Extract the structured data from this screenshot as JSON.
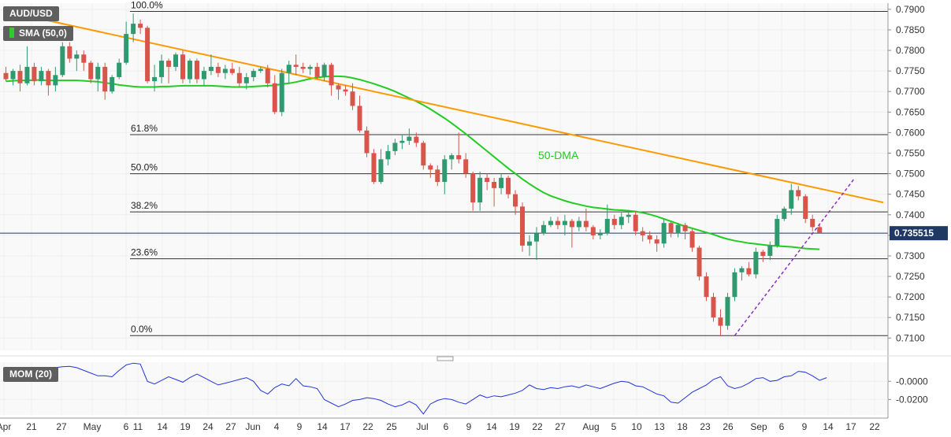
{
  "legend": {
    "symbol": "AUD/USD",
    "sma_label": "SMA (50,0)",
    "sma_color": "#2ecc2e",
    "mom_label": "MOM (20)"
  },
  "colors": {
    "bull": "#2f9a70",
    "bear": "#d9544a",
    "trendline": "#ff9900",
    "support_line": "#8c30c0",
    "sma": "#22cc22",
    "momentum": "#2233dd",
    "price_tag_bg": "#1f3864"
  },
  "chart_data": {
    "type": "candlestick",
    "symbol": "AUD/USD",
    "current_price": "0.735515",
    "y_ticks": [
      "0.7900",
      "0.7850",
      "0.7800",
      "0.7750",
      "0.7700",
      "0.7650",
      "0.7600",
      "0.7550",
      "0.7500",
      "0.7450",
      "0.7400",
      "0.7350",
      "0.7300",
      "0.7250",
      "0.7200",
      "0.7150",
      "0.7100"
    ],
    "ylim": [
      0.707,
      0.7915
    ],
    "x_tick_labels": [
      "Apr",
      "21",
      "27",
      "May",
      "6",
      "11",
      "14",
      "19",
      "24",
      "27",
      "Jun",
      "4",
      "9",
      "14",
      "17",
      "22",
      "25",
      "Jul",
      "6",
      "9",
      "14",
      "19",
      "22",
      "27",
      "Aug",
      "5",
      "10",
      "13",
      "18",
      "23",
      "26",
      "Sep",
      "6",
      "9",
      "14",
      "17",
      "22"
    ],
    "fibonacci": [
      {
        "label": "100.0%",
        "price": 0.7895
      },
      {
        "label": "61.8%",
        "price": 0.7595
      },
      {
        "label": "50.0%",
        "price": 0.75
      },
      {
        "label": "38.2%",
        "price": 0.7407
      },
      {
        "label": "23.6%",
        "price": 0.7293
      },
      {
        "label": "0.0%",
        "price": 0.7106
      }
    ],
    "annotation": "50-DMA",
    "candles": [
      [
        0.7745,
        0.776,
        0.7725,
        0.773
      ],
      [
        0.773,
        0.7755,
        0.7715,
        0.775
      ],
      [
        0.775,
        0.7765,
        0.77,
        0.772
      ],
      [
        0.772,
        0.781,
        0.7715,
        0.776
      ],
      [
        0.776,
        0.777,
        0.7715,
        0.7725
      ],
      [
        0.7725,
        0.776,
        0.7715,
        0.775
      ],
      [
        0.775,
        0.7755,
        0.769,
        0.7715
      ],
      [
        0.7715,
        0.776,
        0.77,
        0.774
      ],
      [
        0.774,
        0.782,
        0.7735,
        0.781
      ],
      [
        0.781,
        0.782,
        0.777,
        0.778
      ],
      [
        0.778,
        0.78,
        0.775,
        0.779
      ],
      [
        0.779,
        0.78,
        0.775,
        0.777
      ],
      [
        0.777,
        0.7775,
        0.772,
        0.773
      ],
      [
        0.773,
        0.777,
        0.77,
        0.776
      ],
      [
        0.776,
        0.777,
        0.768,
        0.77
      ],
      [
        0.77,
        0.774,
        0.7695,
        0.7735
      ],
      [
        0.7735,
        0.778,
        0.773,
        0.777
      ],
      [
        0.777,
        0.787,
        0.7765,
        0.784
      ],
      [
        0.784,
        0.789,
        0.782,
        0.7865
      ],
      [
        0.7865,
        0.7875,
        0.784,
        0.7855
      ],
      [
        0.7855,
        0.786,
        0.772,
        0.7725
      ],
      [
        0.7725,
        0.7765,
        0.77,
        0.7735
      ],
      [
        0.7735,
        0.779,
        0.772,
        0.7775
      ],
      [
        0.7775,
        0.778,
        0.772,
        0.776
      ],
      [
        0.776,
        0.7795,
        0.775,
        0.779
      ],
      [
        0.779,
        0.78,
        0.772,
        0.773
      ],
      [
        0.773,
        0.778,
        0.772,
        0.7775
      ],
      [
        0.7775,
        0.778,
        0.772,
        0.773
      ],
      [
        0.773,
        0.776,
        0.7715,
        0.775
      ],
      [
        0.775,
        0.779,
        0.774,
        0.776
      ],
      [
        0.776,
        0.777,
        0.7735,
        0.7745
      ],
      [
        0.7745,
        0.7765,
        0.773,
        0.7755
      ],
      [
        0.7755,
        0.777,
        0.774,
        0.7745
      ],
      [
        0.7745,
        0.776,
        0.771,
        0.772
      ],
      [
        0.772,
        0.7745,
        0.7705,
        0.7735
      ],
      [
        0.7735,
        0.7755,
        0.7725,
        0.775
      ],
      [
        0.775,
        0.776,
        0.7745,
        0.7755
      ],
      [
        0.7755,
        0.7765,
        0.771,
        0.772
      ],
      [
        0.772,
        0.774,
        0.7645,
        0.765
      ],
      [
        0.765,
        0.7755,
        0.764,
        0.7745
      ],
      [
        0.7745,
        0.7775,
        0.772,
        0.7765
      ],
      [
        0.7765,
        0.779,
        0.774,
        0.776
      ],
      [
        0.776,
        0.777,
        0.7745,
        0.7755
      ],
      [
        0.7755,
        0.7765,
        0.774,
        0.776
      ],
      [
        0.776,
        0.777,
        0.773,
        0.7735
      ],
      [
        0.7735,
        0.777,
        0.7725,
        0.7765
      ],
      [
        0.7765,
        0.777,
        0.769,
        0.7715
      ],
      [
        0.7715,
        0.772,
        0.768,
        0.7705
      ],
      [
        0.7705,
        0.7715,
        0.769,
        0.77
      ],
      [
        0.77,
        0.772,
        0.7655,
        0.7665
      ],
      [
        0.7665,
        0.769,
        0.76,
        0.7605
      ],
      [
        0.7605,
        0.7615,
        0.754,
        0.755
      ],
      [
        0.755,
        0.756,
        0.7475,
        0.748
      ],
      [
        0.748,
        0.756,
        0.7475,
        0.7535
      ],
      [
        0.7535,
        0.757,
        0.752,
        0.7555
      ],
      [
        0.7555,
        0.7585,
        0.7545,
        0.7575
      ],
      [
        0.7575,
        0.7595,
        0.756,
        0.758
      ],
      [
        0.758,
        0.761,
        0.757,
        0.759
      ],
      [
        0.759,
        0.76,
        0.7565,
        0.7575
      ],
      [
        0.7575,
        0.758,
        0.751,
        0.752
      ],
      [
        0.752,
        0.7525,
        0.749,
        0.751
      ],
      [
        0.751,
        0.752,
        0.747,
        0.748
      ],
      [
        0.748,
        0.7545,
        0.745,
        0.7535
      ],
      [
        0.7535,
        0.755,
        0.751,
        0.7545
      ],
      [
        0.7545,
        0.76,
        0.7525,
        0.7535
      ],
      [
        0.7535,
        0.755,
        0.749,
        0.75
      ],
      [
        0.75,
        0.7505,
        0.741,
        0.743
      ],
      [
        0.743,
        0.7505,
        0.741,
        0.749
      ],
      [
        0.749,
        0.75,
        0.746,
        0.748
      ],
      [
        0.748,
        0.749,
        0.742,
        0.7465
      ],
      [
        0.7465,
        0.75,
        0.745,
        0.749
      ],
      [
        0.749,
        0.7495,
        0.744,
        0.745
      ],
      [
        0.745,
        0.746,
        0.74,
        0.742
      ],
      [
        0.742,
        0.743,
        0.731,
        0.7325
      ],
      [
        0.7325,
        0.735,
        0.73,
        0.7335
      ],
      [
        0.7335,
        0.737,
        0.729,
        0.7355
      ],
      [
        0.7355,
        0.7385,
        0.735,
        0.7375
      ],
      [
        0.7375,
        0.7395,
        0.737,
        0.7385
      ],
      [
        0.7385,
        0.7395,
        0.7365,
        0.7375
      ],
      [
        0.7375,
        0.74,
        0.735,
        0.7385
      ],
      [
        0.7385,
        0.739,
        0.732,
        0.737
      ],
      [
        0.737,
        0.7395,
        0.736,
        0.7385
      ],
      [
        0.7385,
        0.7415,
        0.736,
        0.737
      ],
      [
        0.737,
        0.7375,
        0.734,
        0.735
      ],
      [
        0.735,
        0.7365,
        0.734,
        0.7355
      ],
      [
        0.7355,
        0.7425,
        0.735,
        0.739
      ],
      [
        0.739,
        0.74,
        0.7365,
        0.7375
      ],
      [
        0.7375,
        0.7405,
        0.7365,
        0.7395
      ],
      [
        0.7395,
        0.741,
        0.738,
        0.74
      ],
      [
        0.74,
        0.741,
        0.735,
        0.736
      ],
      [
        0.736,
        0.737,
        0.7335,
        0.735
      ],
      [
        0.735,
        0.736,
        0.733,
        0.734
      ],
      [
        0.734,
        0.735,
        0.731,
        0.733
      ],
      [
        0.733,
        0.739,
        0.732,
        0.738
      ],
      [
        0.738,
        0.7385,
        0.7345,
        0.7355
      ],
      [
        0.7355,
        0.738,
        0.7345,
        0.7375
      ],
      [
        0.7375,
        0.738,
        0.734,
        0.736
      ],
      [
        0.736,
        0.7365,
        0.731,
        0.732
      ],
      [
        0.732,
        0.7325,
        0.724,
        0.725
      ],
      [
        0.725,
        0.726,
        0.719,
        0.72
      ],
      [
        0.72,
        0.721,
        0.714,
        0.715
      ],
      [
        0.715,
        0.717,
        0.7106,
        0.713
      ],
      [
        0.713,
        0.721,
        0.712,
        0.72
      ],
      [
        0.72,
        0.727,
        0.719,
        0.726
      ],
      [
        0.726,
        0.7275,
        0.724,
        0.727
      ],
      [
        0.727,
        0.7285,
        0.725,
        0.7255
      ],
      [
        0.7255,
        0.732,
        0.7245,
        0.731
      ],
      [
        0.731,
        0.7315,
        0.7285,
        0.73
      ],
      [
        0.73,
        0.7335,
        0.729,
        0.7325
      ],
      [
        0.7325,
        0.74,
        0.732,
        0.739
      ],
      [
        0.739,
        0.742,
        0.7385,
        0.7415
      ],
      [
        0.7415,
        0.7475,
        0.74,
        0.746
      ],
      [
        0.746,
        0.747,
        0.7435,
        0.7445
      ],
      [
        0.7445,
        0.745,
        0.738,
        0.739
      ],
      [
        0.739,
        0.74,
        0.736,
        0.737
      ],
      [
        0.737,
        0.7375,
        0.7355,
        0.7356
      ]
    ],
    "sma50": [
      0.7725,
      0.7726,
      0.7727,
      0.7727,
      0.7728,
      0.7728,
      0.7727,
      0.7727,
      0.7727,
      0.7727,
      0.7727,
      0.7726,
      0.7725,
      0.7724,
      0.7721,
      0.7719,
      0.7716,
      0.7714,
      0.7712,
      0.7711,
      0.7711,
      0.7711,
      0.7712,
      0.7712,
      0.7713,
      0.7714,
      0.7714,
      0.7714,
      0.7714,
      0.7714,
      0.7713,
      0.7712,
      0.7711,
      0.7711,
      0.7711,
      0.7712,
      0.7713,
      0.7714,
      0.7715,
      0.7718,
      0.772,
      0.7723,
      0.7727,
      0.7731,
      0.7734,
      0.7736,
      0.7737,
      0.7737,
      0.7736,
      0.7733,
      0.7729,
      0.7724,
      0.7719,
      0.7713,
      0.7707,
      0.77,
      0.7692,
      0.7684,
      0.7676,
      0.7667,
      0.7657,
      0.7646,
      0.7635,
      0.7623,
      0.761,
      0.7597,
      0.7583,
      0.7569,
      0.7555,
      0.7541,
      0.7527,
      0.7513,
      0.75,
      0.7487,
      0.7475,
      0.7464,
      0.7454,
      0.7446,
      0.744,
      0.7434,
      0.7429,
      0.7425,
      0.7421,
      0.7418,
      0.7416,
      0.7414,
      0.7412,
      0.7411,
      0.741,
      0.7408,
      0.7405,
      0.7401,
      0.7396,
      0.739,
      0.7384,
      0.7378,
      0.7372,
      0.7367,
      0.7362,
      0.7357,
      0.7352,
      0.7346,
      0.7341,
      0.7337,
      0.7334,
      0.7331,
      0.7329,
      0.7327,
      0.7325,
      0.7324,
      0.7323,
      0.7322,
      0.732,
      0.7318,
      0.7317,
      0.7316
    ],
    "trendline": [
      [
        0.7895,
        0
      ],
      [
        0.743,
        124
      ]
    ],
    "support_line": [
      [
        0.7106,
        103
      ],
      [
        0.749,
        120
      ]
    ],
    "momentum": {
      "y_ticks": [
        "-0.0000",
        "-0.0200"
      ],
      "ylim": [
        -0.037,
        0.021
      ],
      "values": [
        0.012,
        0.0125,
        0.013,
        0.0135,
        0.014,
        0.0145,
        0.014,
        0.015,
        0.016,
        0.0165,
        0.015,
        0.012,
        0.009,
        0.006,
        0.006,
        0.005,
        0.012,
        0.018,
        0.02,
        0.019,
        0.0,
        -0.003,
        0.001,
        0.005,
        0.002,
        -0.001,
        0.004,
        0.008,
        0.004,
        0.0,
        -0.004,
        -0.002,
        0.0,
        0.002,
        0.004,
        0.0,
        -0.01,
        -0.014,
        -0.007,
        -0.003,
        -0.005,
        0.003,
        -0.005,
        -0.006,
        -0.008,
        -0.02,
        -0.024,
        -0.028,
        -0.025,
        -0.021,
        -0.02,
        -0.018,
        -0.019,
        -0.021,
        -0.025,
        -0.028,
        -0.026,
        -0.022,
        -0.026,
        -0.036,
        -0.025,
        -0.021,
        -0.019,
        -0.02,
        -0.023,
        -0.025,
        -0.02,
        -0.015,
        -0.018,
        -0.016,
        -0.017,
        -0.015,
        -0.013,
        -0.01,
        -0.004,
        -0.008,
        -0.009,
        -0.007,
        -0.008,
        -0.006,
        -0.005,
        -0.007,
        -0.004,
        -0.006,
        -0.008,
        -0.005,
        -0.002,
        0.0,
        -0.001,
        -0.005,
        -0.006,
        -0.01,
        -0.014,
        -0.016,
        -0.023,
        -0.024,
        -0.018,
        -0.012,
        -0.008,
        -0.004,
        0.002,
        0.005,
        -0.005,
        -0.008,
        -0.006,
        -0.002,
        0.003,
        0.004,
        0.0,
        0.001,
        0.005,
        0.006,
        0.011,
        0.01,
        0.006,
        0.001,
        0.004
      ]
    }
  }
}
